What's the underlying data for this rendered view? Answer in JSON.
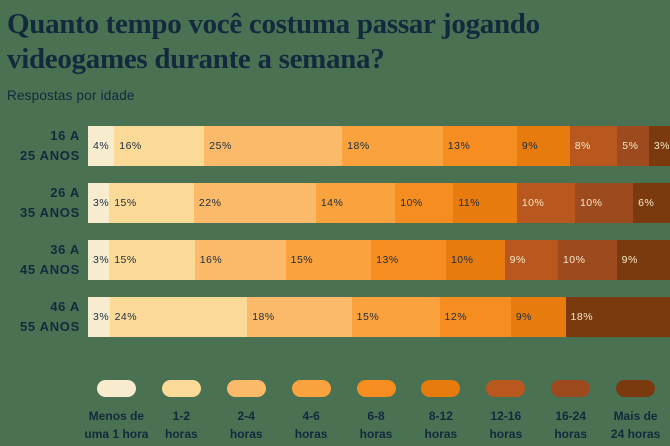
{
  "title": "Quanto tempo você costuma passar jogando videogames durante a semana?",
  "subtitle": "Respostas por idade",
  "background_color": "#4A7152",
  "text_color": "#132A3E",
  "chart_data": {
    "type": "bar",
    "stacked": true,
    "orientation": "horizontal",
    "unit": "%",
    "title": "Quanto tempo você costuma passar jogando videogames durante a semana?",
    "subtitle": "Respostas por idade",
    "legend_position": "bottom",
    "categories": [
      [
        "16 A",
        "25 ANOS"
      ],
      [
        "26 A",
        "35 ANOS"
      ],
      [
        "36 A",
        "45 ANOS"
      ],
      [
        "46 A",
        "55 ANOS"
      ]
    ],
    "buckets": [
      {
        "label": [
          "Menos de",
          "uma 1 hora"
        ],
        "color": "#F7EDCE",
        "values": [
          4,
          3,
          3,
          3
        ]
      },
      {
        "label": [
          "1-2",
          "horas"
        ],
        "color": "#FBDA97",
        "values": [
          16,
          15,
          15,
          24
        ]
      },
      {
        "label": [
          "2-4",
          "horas"
        ],
        "color": "#FBBA6A",
        "values": [
          25,
          22,
          16,
          18
        ]
      },
      {
        "label": [
          "4-6",
          "horas"
        ],
        "color": "#F9A23E",
        "values": [
          18,
          14,
          15,
          15
        ]
      },
      {
        "label": [
          "6-8",
          "horas"
        ],
        "color": "#F58D20",
        "values": [
          13,
          10,
          13,
          12
        ]
      },
      {
        "label": [
          "8-12",
          "horas"
        ],
        "color": "#E87B0E",
        "values": [
          9,
          11,
          10,
          9
        ]
      },
      {
        "label": [
          "12-16",
          "horas"
        ],
        "color": "#B8581E",
        "values": [
          8,
          10,
          9,
          0
        ]
      },
      {
        "label": [
          "16-24",
          "horas"
        ],
        "color": "#9C4A1E",
        "values": [
          5,
          10,
          10,
          0
        ]
      },
      {
        "label": [
          "Mais de",
          "24 horas"
        ],
        "color": "#7B390E",
        "values": [
          3,
          6,
          9,
          18
        ]
      }
    ],
    "value_text_dark": "#1C2C3E",
    "value_text_light": "#F6E8C5",
    "light_text_from_index": 6
  }
}
